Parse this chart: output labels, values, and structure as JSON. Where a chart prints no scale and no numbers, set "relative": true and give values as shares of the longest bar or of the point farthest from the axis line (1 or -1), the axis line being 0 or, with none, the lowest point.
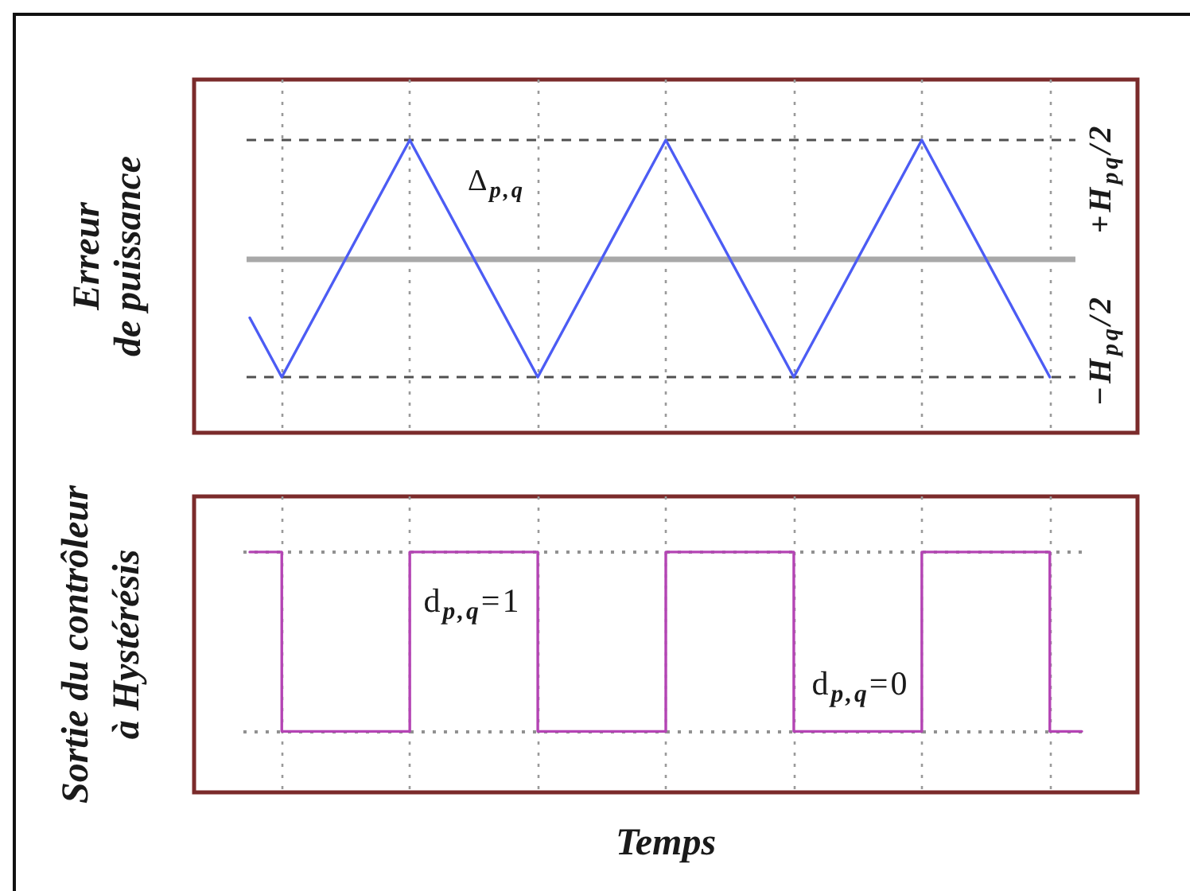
{
  "chart_data": [
    {
      "type": "line",
      "ylabel": "Erreur\nde puissance",
      "relative": true,
      "categories": [
        null,
        null,
        null,
        null,
        null,
        null,
        null,
        null,
        null,
        null,
        null,
        null,
        null,
        null,
        null,
        null,
        null,
        null,
        null,
        null,
        null,
        null,
        null,
        null,
        null,
        null,
        null
      ],
      "values": [
        -0.5,
        -1,
        -0.5,
        0,
        0.5,
        1,
        0.5,
        0,
        -0.5,
        -1,
        -0.5,
        0,
        0.5,
        1,
        0.5,
        0,
        -0.5,
        -1,
        -0.5,
        0,
        0.5,
        1,
        0.5,
        0,
        -0.5,
        -1,
        null
      ],
      "color": "#4c5cf4",
      "marker": "none",
      "grid": "x",
      "ref_lines": [
        {
          "axis": "y",
          "value": 1,
          "label": "+H$_{pq}$/2",
          "line_style": "dashed",
          "color": "#505050"
        },
        {
          "axis": "y",
          "value": -1,
          "label": "−H$_{pq}$/2",
          "line_style": "dashed",
          "color": "#505050"
        },
        {
          "axis": "y",
          "value": 0,
          "line_style": "solid",
          "color": "#a8a8a8"
        }
      ],
      "annotations": [
        "Δ$_{p,q}$"
      ]
    },
    {
      "type": "step",
      "xlabel": "Temps",
      "ylabel": "Sortie du contrôleur\nà Hystérésis",
      "relative": true,
      "categories": [
        null,
        null,
        null,
        null,
        null,
        null,
        null,
        null,
        null,
        null,
        null,
        null,
        null,
        null,
        null,
        null,
        null,
        null,
        null,
        null,
        null,
        null,
        null,
        null,
        null,
        null,
        null
      ],
      "values": [
        1,
        0,
        0,
        0,
        0,
        1,
        1,
        1,
        1,
        0,
        0,
        0,
        0,
        1,
        1,
        1,
        1,
        0,
        0,
        0,
        0,
        1,
        1,
        1,
        1,
        0,
        0
      ],
      "color": "#b444b4",
      "marker": "none",
      "grid": "x",
      "ref_lines": [
        {
          "axis": "y",
          "value": 1,
          "line_style": "dotted",
          "color": "#909090"
        },
        {
          "axis": "y",
          "value": 0,
          "line_style": "dotted",
          "color": "#909090"
        }
      ],
      "annotations": [
        "d$_{p,q}$=1",
        "d$_{p,q}$=0"
      ]
    }
  ]
}
